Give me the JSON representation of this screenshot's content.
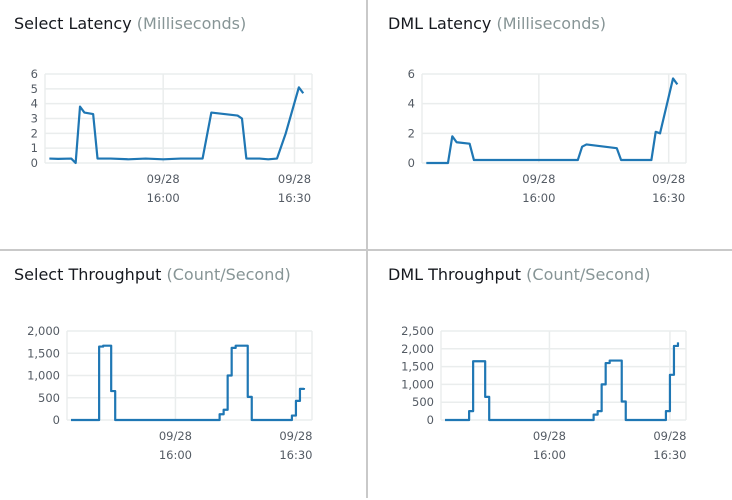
{
  "chart_data": [
    {
      "type": "line",
      "title": "Select Latency",
      "unit": "(Milliseconds)",
      "ylim": [
        0,
        6
      ],
      "yticks": [
        "0",
        "1",
        "2",
        "3",
        "4",
        "5",
        "6"
      ],
      "ytick_values": [
        0,
        1,
        2,
        3,
        4,
        5,
        6
      ],
      "xlim": [
        "15:33",
        "16:34"
      ],
      "xticks": [
        {
          "date": "09/28",
          "time": "16:00"
        },
        {
          "date": "09/28",
          "time": "16:30"
        }
      ],
      "grid": true,
      "color": "#1f77b4",
      "interpolation": "linear",
      "points": [
        [
          "15:34",
          0.3
        ],
        [
          "15:36",
          0.28
        ],
        [
          "15:39",
          0.3
        ],
        [
          "15:40",
          0.0
        ],
        [
          "15:41",
          3.8
        ],
        [
          "15:42",
          3.4
        ],
        [
          "15:44",
          3.3
        ],
        [
          "15:45",
          0.3
        ],
        [
          "15:48",
          0.3
        ],
        [
          "15:52",
          0.25
        ],
        [
          "15:56",
          0.3
        ],
        [
          "16:00",
          0.25
        ],
        [
          "16:04",
          0.3
        ],
        [
          "16:09",
          0.3
        ],
        [
          "16:11",
          3.4
        ],
        [
          "16:17",
          3.2
        ],
        [
          "16:18",
          3.0
        ],
        [
          "16:19",
          0.3
        ],
        [
          "16:22",
          0.3
        ],
        [
          "16:24",
          0.25
        ],
        [
          "16:26",
          0.3
        ],
        [
          "16:28",
          2.0
        ],
        [
          "16:31",
          5.1
        ],
        [
          "16:32",
          4.7
        ]
      ]
    },
    {
      "type": "line",
      "title": "DML Latency",
      "unit": "(Milliseconds)",
      "ylim": [
        0,
        6
      ],
      "yticks": [
        "0",
        "2",
        "4",
        "6"
      ],
      "ytick_values": [
        0,
        2,
        4,
        6
      ],
      "xlim": [
        "15:33",
        "16:34"
      ],
      "xticks": [
        {
          "date": "09/28",
          "time": "16:00"
        },
        {
          "date": "09/28",
          "time": "16:30"
        }
      ],
      "grid": true,
      "color": "#1f77b4",
      "interpolation": "linear",
      "points": [
        [
          "15:34",
          0
        ],
        [
          "15:39",
          0
        ],
        [
          "15:40",
          1.8
        ],
        [
          "15:41",
          1.4
        ],
        [
          "15:44",
          1.3
        ],
        [
          "15:45",
          0.2
        ],
        [
          "16:09",
          0.2
        ],
        [
          "16:10",
          1.1
        ],
        [
          "16:11",
          1.25
        ],
        [
          "16:18",
          1.0
        ],
        [
          "16:19",
          0.2
        ],
        [
          "16:26",
          0.2
        ],
        [
          "16:27",
          2.1
        ],
        [
          "16:28",
          2.0
        ],
        [
          "16:31",
          5.7
        ],
        [
          "16:32",
          5.3
        ]
      ]
    },
    {
      "type": "line",
      "title": "Select Throughput",
      "unit": "(Count/Second)",
      "ylim": [
        0,
        2000
      ],
      "yticks": [
        "0",
        "500",
        "1,000",
        "1,500",
        "2,000"
      ],
      "ytick_values": [
        0,
        500,
        1000,
        1500,
        2000
      ],
      "xlim": [
        "15:33",
        "16:34"
      ],
      "xticks": [
        {
          "date": "09/28",
          "time": "16:00"
        },
        {
          "date": "09/28",
          "time": "16:30"
        }
      ],
      "grid": true,
      "color": "#1f77b4",
      "interpolation": "step",
      "points": [
        [
          "15:34",
          0
        ],
        [
          "15:41",
          1650
        ],
        [
          "15:42",
          1670
        ],
        [
          "15:44",
          650
        ],
        [
          "15:45",
          0
        ],
        [
          "16:11",
          130
        ],
        [
          "16:12",
          230
        ],
        [
          "16:13",
          1000
        ],
        [
          "16:14",
          1620
        ],
        [
          "16:15",
          1670
        ],
        [
          "16:18",
          520
        ],
        [
          "16:19",
          0
        ],
        [
          "16:29",
          100
        ],
        [
          "16:30",
          430
        ],
        [
          "16:31",
          700
        ],
        [
          "16:32",
          720
        ]
      ]
    },
    {
      "type": "line",
      "title": "DML Throughput",
      "unit": "(Count/Second)",
      "ylim": [
        0,
        2500
      ],
      "yticks": [
        "0",
        "500",
        "1,000",
        "1,500",
        "2,000",
        "2,500"
      ],
      "ytick_values": [
        0,
        500,
        1000,
        1500,
        2000,
        2500
      ],
      "xlim": [
        "15:33",
        "16:34"
      ],
      "xticks": [
        {
          "date": "09/28",
          "time": "16:00"
        },
        {
          "date": "09/28",
          "time": "16:30"
        }
      ],
      "grid": true,
      "color": "#1f77b4",
      "interpolation": "step",
      "points": [
        [
          "15:34",
          0
        ],
        [
          "15:40",
          250
        ],
        [
          "15:41",
          1650
        ],
        [
          "15:44",
          650
        ],
        [
          "15:45",
          0
        ],
        [
          "16:11",
          150
        ],
        [
          "16:12",
          250
        ],
        [
          "16:13",
          1000
        ],
        [
          "16:14",
          1600
        ],
        [
          "16:15",
          1670
        ],
        [
          "16:18",
          520
        ],
        [
          "16:19",
          0
        ],
        [
          "16:29",
          250
        ],
        [
          "16:30",
          1270
        ],
        [
          "16:31",
          2080
        ],
        [
          "16:32",
          2180
        ]
      ]
    }
  ]
}
